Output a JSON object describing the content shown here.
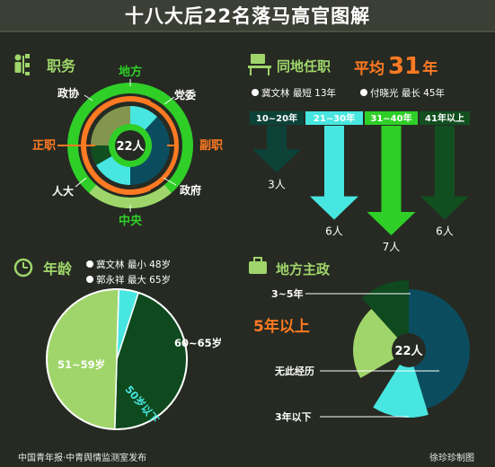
{
  "title": "十八大后22名落马高官图解",
  "footer": {
    "source": "中国青年报·中青舆情监测室发布",
    "author": "徐珍珍制图"
  },
  "colors": {
    "dark_green": "#0e4a1e",
    "light_green": "#9fd56a",
    "cyan": "#48e6e0",
    "bright_green": "#2fcf28",
    "orange": "#ff7a22",
    "olive": "#84954f",
    "teal": "#0b4d5f",
    "arrow_dark": "#0c4238",
    "arrow_deep": "#124f20"
  },
  "position_panel": {
    "heading": "职务",
    "center_label": "22人",
    "labels": {
      "local": "地方",
      "central": "中央",
      "principal": "正职",
      "deputy": "副职",
      "party": "党委",
      "gov": "政府",
      "npc": "人大",
      "cppcc": "政协"
    },
    "outer_split": {
      "local": 17,
      "central": 5
    },
    "rank_split": {
      "principal": 14,
      "deputy": 8
    }
  },
  "tenure_panel": {
    "heading": "同地任职",
    "avg_prefix": "平均",
    "avg_value": "31",
    "avg_unit": "年",
    "shortest": "冀文林 最短 13年",
    "longest": "付晓光 最长 45年"
  },
  "age_panel": {
    "heading": "年龄",
    "youngest": "冀文林 最小 48岁",
    "oldest": "郭永祥 最大 65岁"
  },
  "governance_panel": {
    "heading": "地方主政",
    "center_label": "22人"
  },
  "chart_data": [
    {
      "type": "bar",
      "title": "同地任职",
      "categories": [
        "10~20年",
        "21~30年",
        "31~40年",
        "41年以上"
      ],
      "values": [
        3,
        6,
        7,
        6
      ],
      "value_labels": [
        "3人",
        "6人",
        "7人",
        "6人"
      ],
      "ylim": [
        0,
        7
      ]
    },
    {
      "type": "pie",
      "title": "年龄",
      "labels": [
        "60~65岁",
        "51~59岁",
        "50岁以下"
      ],
      "values": [
        10,
        11,
        1
      ]
    },
    {
      "type": "pie",
      "title": "地方主政",
      "labels": [
        "5年以上",
        "无此经历",
        "3年以下",
        "3~5年"
      ],
      "values": [
        6,
        10,
        3,
        3
      ]
    }
  ]
}
